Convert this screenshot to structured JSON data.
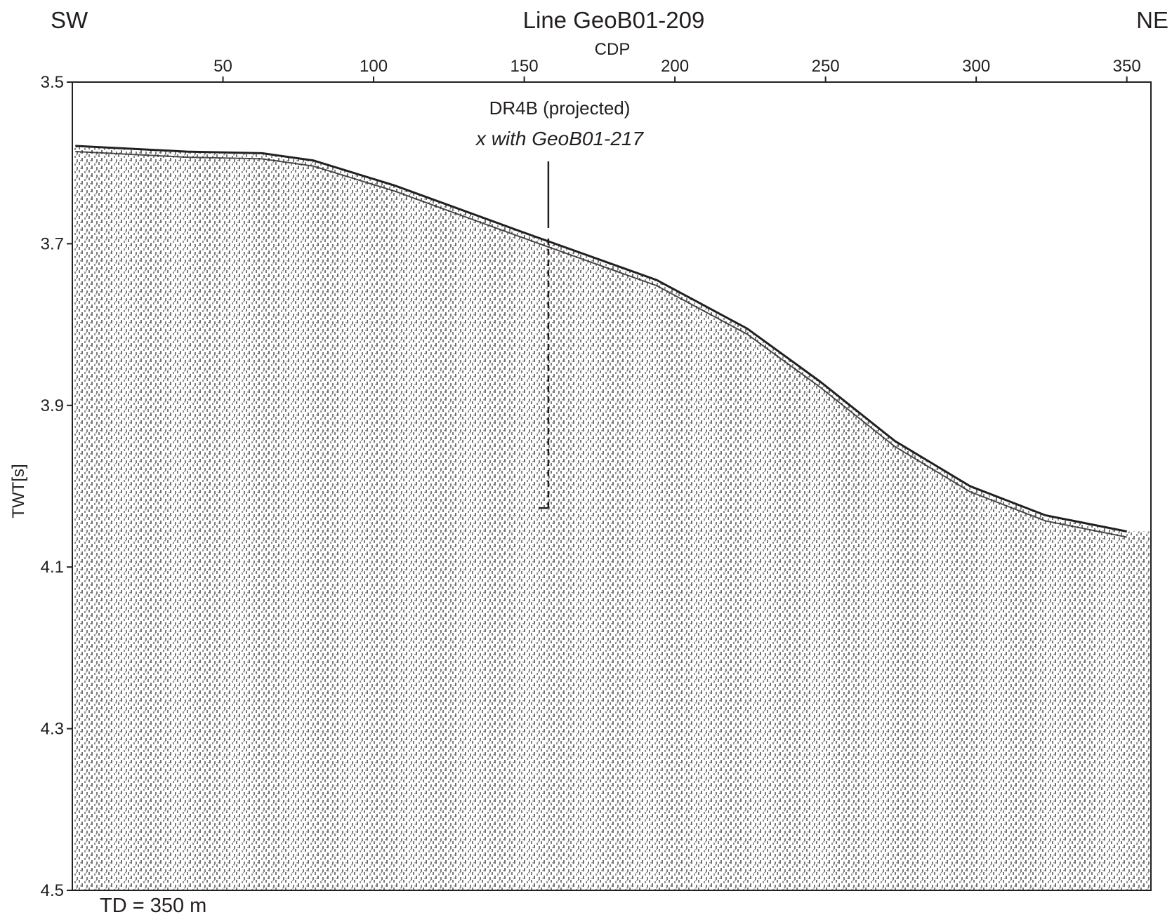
{
  "chart_data": {
    "type": "line",
    "title": "Line GeoB01-209",
    "left_label": "SW",
    "right_label": "NE",
    "x_label": "CDP",
    "y_label": "TWT[s]",
    "footnote": "TD = 350 m",
    "xlim": [
      0,
      358
    ],
    "xticks": [
      50,
      100,
      150,
      200,
      250,
      300,
      350
    ],
    "ylim": [
      3.5,
      4.5
    ],
    "yticks": [
      3.5,
      3.7,
      3.9,
      4.1,
      4.3,
      4.5
    ],
    "y_inverted": true,
    "series": [
      {
        "color": "#231f20",
        "x": [
          1,
          38,
          63,
          80,
          107,
          149,
          194,
          224,
          248,
          273,
          298,
          323,
          350
        ],
        "values": [
          3.579,
          3.586,
          3.588,
          3.597,
          3.628,
          3.685,
          3.745,
          3.805,
          3.87,
          3.944,
          4.0,
          4.036,
          4.056
        ]
      }
    ],
    "marker": {
      "label": "DR4B (projected)",
      "note": "x with GeoB01-217",
      "x": 158,
      "y": 4.027
    }
  }
}
